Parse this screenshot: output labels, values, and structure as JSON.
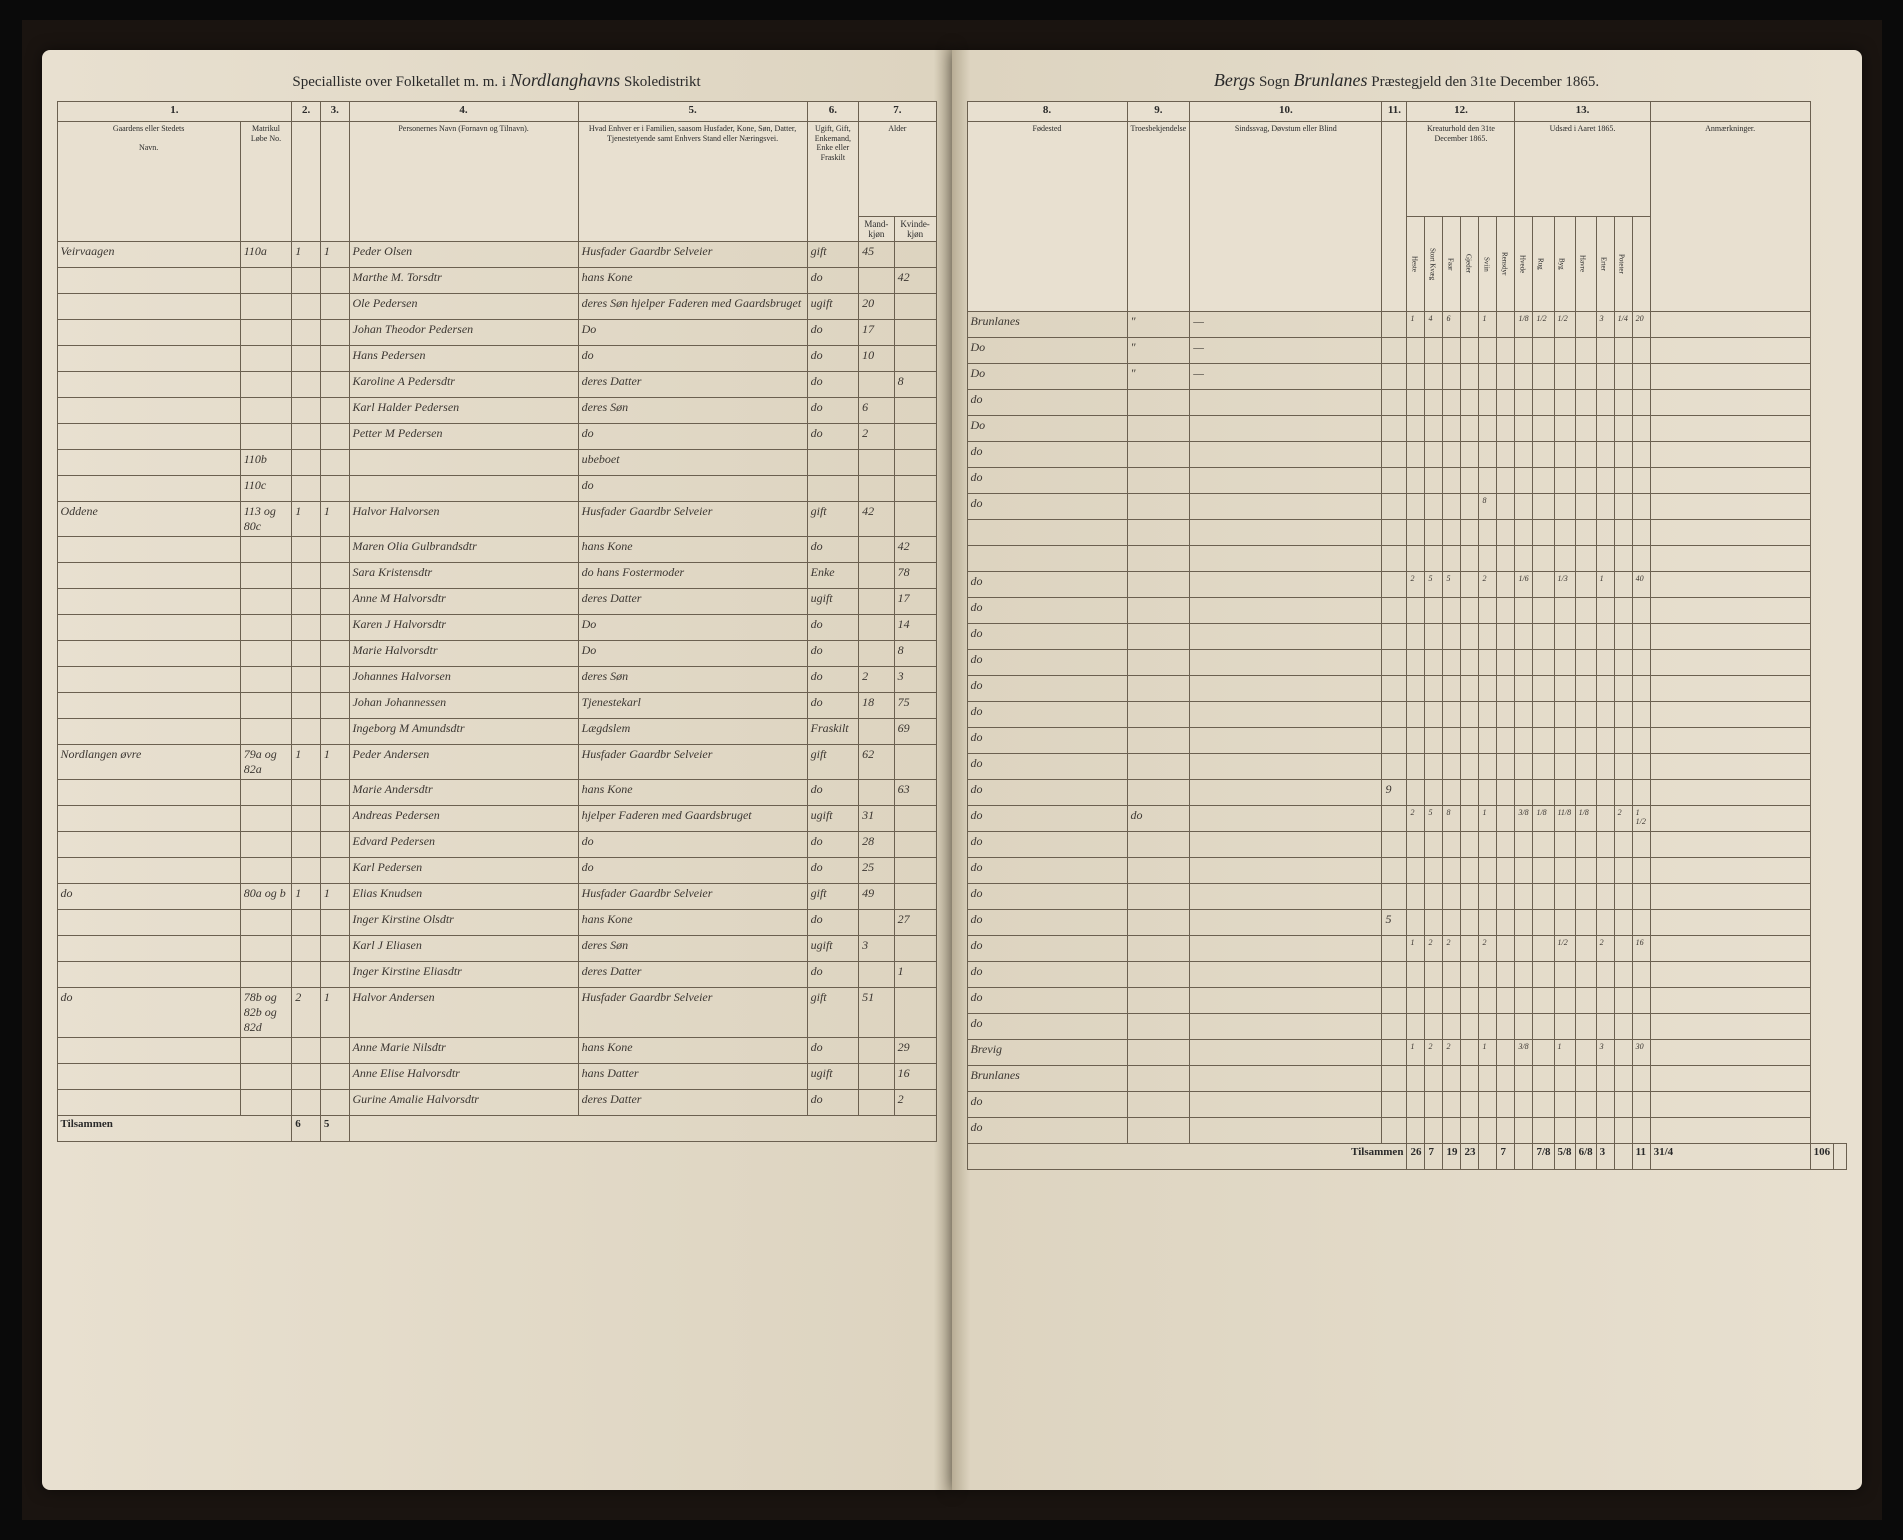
{
  "header": {
    "left_prefix": "Specialliste over Folketallet m. m. i",
    "left_district": "Nordlanghavns",
    "left_suffix": "Skoledistrikt",
    "right_parish": "Bergs",
    "right_sogn": "Sogn",
    "right_prestegjeld": "Brunlanes",
    "right_suffix": "Præstegjeld den 31te December 1865."
  },
  "left_cols": {
    "c1": "1.",
    "c2": "2.",
    "c3": "3.",
    "c4": "4.",
    "c5": "5.",
    "c6": "6.",
    "c7": "7.",
    "h1": "Gaardens eller Stedets",
    "h1b": "Navn.",
    "h1c": "Matrikul Løbe No.",
    "h4": "Personernes Navn (Fornavn og Tilnavn).",
    "h5": "Hvad Enhver er i Familien, saasom Husfader, Kone, Søn, Datter, Tjenestetyende samt Enhvers Stand eller Næringsvei.",
    "h6": "Ugift, Gift, Enkemand, Enke eller Fraskilt",
    "h7a": "Alder",
    "h7b": "Mand-kjøn",
    "h7c": "Kvinde-kjøn"
  },
  "right_cols": {
    "c8": "8.",
    "c9": "9.",
    "c10": "10.",
    "c11": "11.",
    "c12": "12.",
    "c13": "13.",
    "h8": "Fødested",
    "h9": "Troesbekjendelse",
    "h10": "Sindssvag, Døvstum eller Blind",
    "h12": "Kreaturhold den 31te December 1865.",
    "h13": "Udsæd i Aaret 1865.",
    "h_anm": "Anmærkninger."
  },
  "livestock_cols": [
    "Heste",
    "Stort Kvæg",
    "Faar",
    "Gjeder",
    "Sviin",
    "Rensdyr"
  ],
  "crop_cols": [
    "Hvede",
    "Rug",
    "Byg",
    "Havre",
    "Erter",
    "Poteter"
  ],
  "rows_left": [
    {
      "place": "Veirvaagen",
      "no": "110a",
      "h": "1",
      "p": "1",
      "name": "Peder Olsen",
      "role": "Husfader Gaardbr Selveier",
      "status": "gift",
      "m": "45",
      "k": ""
    },
    {
      "place": "",
      "no": "",
      "h": "",
      "p": "",
      "name": "Marthe M. Torsdtr",
      "role": "hans Kone",
      "status": "do",
      "m": "",
      "k": "42"
    },
    {
      "place": "",
      "no": "",
      "h": "",
      "p": "",
      "name": "Ole Pedersen",
      "role": "deres Søn hjelper Faderen med Gaardsbruget",
      "status": "ugift",
      "m": "20",
      "k": ""
    },
    {
      "place": "",
      "no": "",
      "h": "",
      "p": "",
      "name": "Johan Theodor Pedersen",
      "role": "Do",
      "status": "do",
      "m": "17",
      "k": ""
    },
    {
      "place": "",
      "no": "",
      "h": "",
      "p": "",
      "name": "Hans Pedersen",
      "role": "do",
      "status": "do",
      "m": "10",
      "k": ""
    },
    {
      "place": "",
      "no": "",
      "h": "",
      "p": "",
      "name": "Karoline A Pedersdtr",
      "role": "deres Datter",
      "status": "do",
      "m": "",
      "k": "8"
    },
    {
      "place": "",
      "no": "",
      "h": "",
      "p": "",
      "name": "Karl Halder Pedersen",
      "role": "deres Søn",
      "status": "do",
      "m": "6",
      "k": ""
    },
    {
      "place": "",
      "no": "",
      "h": "",
      "p": "",
      "name": "Petter M Pedersen",
      "role": "do",
      "status": "do",
      "m": "2",
      "k": ""
    },
    {
      "place": "",
      "no": "110b",
      "h": "",
      "p": "",
      "name": "",
      "role": "ubeboet",
      "status": "",
      "m": "",
      "k": ""
    },
    {
      "place": "",
      "no": "110c",
      "h": "",
      "p": "",
      "name": "",
      "role": "do",
      "status": "",
      "m": "",
      "k": ""
    },
    {
      "place": "Oddene",
      "no": "113 og 80c",
      "h": "1",
      "p": "1",
      "name": "Halvor Halvorsen",
      "role": "Husfader Gaardbr Selveier",
      "status": "gift",
      "m": "42",
      "k": ""
    },
    {
      "place": "",
      "no": "",
      "h": "",
      "p": "",
      "name": "Maren Olia Gulbrandsdtr",
      "role": "hans Kone",
      "status": "do",
      "m": "",
      "k": "42"
    },
    {
      "place": "",
      "no": "",
      "h": "",
      "p": "",
      "name": "Sara Kristensdtr",
      "role": "do hans Fostermoder",
      "status": "Enke",
      "m": "",
      "k": "78"
    },
    {
      "place": "",
      "no": "",
      "h": "",
      "p": "",
      "name": "Anne M Halvorsdtr",
      "role": "deres Datter",
      "status": "ugift",
      "m": "",
      "k": "17"
    },
    {
      "place": "",
      "no": "",
      "h": "",
      "p": "",
      "name": "Karen J Halvorsdtr",
      "role": "Do",
      "status": "do",
      "m": "",
      "k": "14"
    },
    {
      "place": "",
      "no": "",
      "h": "",
      "p": "",
      "name": "Marie Halvorsdtr",
      "role": "Do",
      "status": "do",
      "m": "",
      "k": "8"
    },
    {
      "place": "",
      "no": "",
      "h": "",
      "p": "",
      "name": "Johannes Halvorsen",
      "role": "deres Søn",
      "status": "do",
      "m": "2",
      "k": "3"
    },
    {
      "place": "",
      "no": "",
      "h": "",
      "p": "",
      "name": "Johan Johannessen",
      "role": "Tjenestekarl",
      "status": "do",
      "m": "18",
      "k": "75"
    },
    {
      "place": "",
      "no": "",
      "h": "",
      "p": "",
      "name": "Ingeborg M Amundsdtr",
      "role": "Lægdslem",
      "status": "Fraskilt",
      "m": "",
      "k": "69"
    },
    {
      "place": "Nordlangen øvre",
      "no": "79a og 82a",
      "h": "1",
      "p": "1",
      "name": "Peder Andersen",
      "role": "Husfader Gaardbr Selveier",
      "status": "gift",
      "m": "62",
      "k": ""
    },
    {
      "place": "",
      "no": "",
      "h": "",
      "p": "",
      "name": "Marie Andersdtr",
      "role": "hans Kone",
      "status": "do",
      "m": "",
      "k": "63"
    },
    {
      "place": "",
      "no": "",
      "h": "",
      "p": "",
      "name": "Andreas Pedersen",
      "role": "hjelper Faderen med Gaardsbruget",
      "status": "ugift",
      "m": "31",
      "k": ""
    },
    {
      "place": "",
      "no": "",
      "h": "",
      "p": "",
      "name": "Edvard Pedersen",
      "role": "do",
      "status": "do",
      "m": "28",
      "k": ""
    },
    {
      "place": "",
      "no": "",
      "h": "",
      "p": "",
      "name": "Karl Pedersen",
      "role": "do",
      "status": "do",
      "m": "25",
      "k": ""
    },
    {
      "place": "do",
      "no": "80a og b",
      "h": "1",
      "p": "1",
      "name": "Elias Knudsen",
      "role": "Husfader Gaardbr Selveier",
      "status": "gift",
      "m": "49",
      "k": ""
    },
    {
      "place": "",
      "no": "",
      "h": "",
      "p": "",
      "name": "Inger Kirstine Olsdtr",
      "role": "hans Kone",
      "status": "do",
      "m": "",
      "k": "27"
    },
    {
      "place": "",
      "no": "",
      "h": "",
      "p": "",
      "name": "Karl J Eliasen",
      "role": "deres Søn",
      "status": "ugift",
      "m": "3",
      "k": ""
    },
    {
      "place": "",
      "no": "",
      "h": "",
      "p": "",
      "name": "Inger Kirstine Eliasdtr",
      "role": "deres Datter",
      "status": "do",
      "m": "",
      "k": "1"
    },
    {
      "place": "do",
      "no": "78b og 82b og 82d",
      "h": "2",
      "p": "1",
      "name": "Halvor Andersen",
      "role": "Husfader Gaardbr Selveier",
      "status": "gift",
      "m": "51",
      "k": ""
    },
    {
      "place": "",
      "no": "",
      "h": "",
      "p": "",
      "name": "Anne Marie Nilsdtr",
      "role": "hans Kone",
      "status": "do",
      "m": "",
      "k": "29"
    },
    {
      "place": "",
      "no": "",
      "h": "",
      "p": "",
      "name": "Anne Elise Halvorsdtr",
      "role": "hans Datter",
      "status": "ugift",
      "m": "",
      "k": "16"
    },
    {
      "place": "",
      "no": "",
      "h": "",
      "p": "",
      "name": "Gurine Amalie Halvorsdtr",
      "role": "deres Datter",
      "status": "do",
      "m": "",
      "k": "2"
    }
  ],
  "rows_right": [
    {
      "born": "Brunlanes",
      "rel": "\"",
      "mad": "—",
      "insane": "",
      "ls": [
        "1",
        "4",
        "6",
        "",
        "1",
        ""
      ],
      "crop": [
        "1/8",
        "1/2",
        "1/2",
        "",
        "3",
        "1/4",
        "20"
      ]
    },
    {
      "born": "Do",
      "rel": "\"",
      "mad": "—",
      "insane": "",
      "ls": [
        "",
        "",
        "",
        "",
        "",
        ""
      ],
      "crop": [
        "",
        "",
        "",
        "",
        "",
        "",
        ""
      ]
    },
    {
      "born": "Do",
      "rel": "\"",
      "mad": "—",
      "insane": "",
      "ls": [
        "",
        "",
        "",
        "",
        "",
        ""
      ],
      "crop": [
        "",
        "",
        "",
        "",
        "",
        "",
        ""
      ]
    },
    {
      "born": "do",
      "rel": "",
      "mad": "",
      "insane": "",
      "ls": [
        "",
        "",
        "",
        "",
        "",
        ""
      ],
      "crop": [
        "",
        "",
        "",
        "",
        "",
        "",
        ""
      ]
    },
    {
      "born": "Do",
      "rel": "",
      "mad": "",
      "insane": "",
      "ls": [
        "",
        "",
        "",
        "",
        "",
        ""
      ],
      "crop": [
        "",
        "",
        "",
        "",
        "",
        "",
        ""
      ]
    },
    {
      "born": "do",
      "rel": "",
      "mad": "",
      "insane": "",
      "ls": [
        "",
        "",
        "",
        "",
        "",
        ""
      ],
      "crop": [
        "",
        "",
        "",
        "",
        "",
        "",
        ""
      ]
    },
    {
      "born": "do",
      "rel": "",
      "mad": "",
      "insane": "",
      "ls": [
        "",
        "",
        "",
        "",
        "",
        ""
      ],
      "crop": [
        "",
        "",
        "",
        "",
        "",
        "",
        ""
      ]
    },
    {
      "born": "do",
      "rel": "",
      "mad": "",
      "insane": "",
      "ls": [
        "",
        "",
        "",
        "",
        "8",
        ""
      ],
      "crop": [
        "",
        "",
        "",
        "",
        "",
        "",
        ""
      ]
    },
    {
      "born": "",
      "rel": "",
      "mad": "",
      "insane": "",
      "ls": [
        "",
        "",
        "",
        "",
        "",
        ""
      ],
      "crop": [
        "",
        "",
        "",
        "",
        "",
        "",
        ""
      ]
    },
    {
      "born": "",
      "rel": "",
      "mad": "",
      "insane": "",
      "ls": [
        "",
        "",
        "",
        "",
        "",
        ""
      ],
      "crop": [
        "",
        "",
        "",
        "",
        "",
        "",
        ""
      ]
    },
    {
      "born": "do",
      "rel": "",
      "mad": "",
      "insane": "",
      "ls": [
        "2",
        "5",
        "5",
        "",
        "2",
        ""
      ],
      "crop": [
        "1/6",
        "",
        "1/3",
        "",
        "1",
        "",
        "40"
      ]
    },
    {
      "born": "do",
      "rel": "",
      "mad": "",
      "insane": "",
      "ls": [
        "",
        "",
        "",
        "",
        "",
        ""
      ],
      "crop": [
        "",
        "",
        "",
        "",
        "",
        "",
        ""
      ]
    },
    {
      "born": "do",
      "rel": "",
      "mad": "",
      "insane": "",
      "ls": [
        "",
        "",
        "",
        "",
        "",
        ""
      ],
      "crop": [
        "",
        "",
        "",
        "",
        "",
        "",
        ""
      ]
    },
    {
      "born": "do",
      "rel": "",
      "mad": "",
      "insane": "",
      "ls": [
        "",
        "",
        "",
        "",
        "",
        ""
      ],
      "crop": [
        "",
        "",
        "",
        "",
        "",
        "",
        ""
      ]
    },
    {
      "born": "do",
      "rel": "",
      "mad": "",
      "insane": "",
      "ls": [
        "",
        "",
        "",
        "",
        "",
        ""
      ],
      "crop": [
        "",
        "",
        "",
        "",
        "",
        "",
        ""
      ]
    },
    {
      "born": "do",
      "rel": "",
      "mad": "",
      "insane": "",
      "ls": [
        "",
        "",
        "",
        "",
        "",
        ""
      ],
      "crop": [
        "",
        "",
        "",
        "",
        "",
        "",
        ""
      ]
    },
    {
      "born": "do",
      "rel": "",
      "mad": "",
      "insane": "",
      "ls": [
        "",
        "",
        "",
        "",
        "",
        ""
      ],
      "crop": [
        "",
        "",
        "",
        "",
        "",
        "",
        ""
      ]
    },
    {
      "born": "do",
      "rel": "",
      "mad": "",
      "insane": "",
      "ls": [
        "",
        "",
        "",
        "",
        "",
        ""
      ],
      "crop": [
        "",
        "",
        "",
        "",
        "",
        "",
        ""
      ]
    },
    {
      "born": "do",
      "rel": "",
      "mad": "",
      "insane": "9",
      "ls": [
        "",
        "",
        "",
        "",
        "",
        ""
      ],
      "crop": [
        "",
        "",
        "",
        "",
        "",
        "",
        ""
      ]
    },
    {
      "born": "do",
      "rel": "do",
      "mad": "",
      "insane": "",
      "ls": [
        "2",
        "5",
        "8",
        "",
        "1",
        ""
      ],
      "crop": [
        "3/8",
        "1/8",
        "11/8",
        "1/8",
        "",
        "2",
        "1 1/2",
        "20"
      ]
    },
    {
      "born": "do",
      "rel": "",
      "mad": "",
      "insane": "",
      "ls": [
        "",
        "",
        "",
        "",
        "",
        ""
      ],
      "crop": [
        "",
        "",
        "",
        "",
        "",
        "",
        ""
      ]
    },
    {
      "born": "do",
      "rel": "",
      "mad": "",
      "insane": "",
      "ls": [
        "",
        "",
        "",
        "",
        "",
        ""
      ],
      "crop": [
        "",
        "",
        "",
        "",
        "",
        "",
        ""
      ]
    },
    {
      "born": "do",
      "rel": "",
      "mad": "",
      "insane": "",
      "ls": [
        "",
        "",
        "",
        "",
        "",
        ""
      ],
      "crop": [
        "",
        "",
        "",
        "",
        "",
        "",
        ""
      ]
    },
    {
      "born": "do",
      "rel": "",
      "mad": "",
      "insane": "5",
      "ls": [
        "",
        "",
        "",
        "",
        "",
        ""
      ],
      "crop": [
        "",
        "",
        "",
        "",
        "",
        "",
        ""
      ]
    },
    {
      "born": "do",
      "rel": "",
      "mad": "",
      "insane": "",
      "ls": [
        "1",
        "2",
        "2",
        "",
        "2",
        ""
      ],
      "crop": [
        "",
        "",
        "1/2",
        "",
        "2",
        "",
        "16"
      ]
    },
    {
      "born": "do",
      "rel": "",
      "mad": "",
      "insane": "",
      "ls": [
        "",
        "",
        "",
        "",
        "",
        ""
      ],
      "crop": [
        "",
        "",
        "",
        "",
        "",
        "",
        ""
      ]
    },
    {
      "born": "do",
      "rel": "",
      "mad": "",
      "insane": "",
      "ls": [
        "",
        "",
        "",
        "",
        "",
        ""
      ],
      "crop": [
        "",
        "",
        "",
        "",
        "",
        "",
        ""
      ]
    },
    {
      "born": "do",
      "rel": "",
      "mad": "",
      "insane": "",
      "ls": [
        "",
        "",
        "",
        "",
        "",
        ""
      ],
      "crop": [
        "",
        "",
        "",
        "",
        "",
        "",
        ""
      ]
    },
    {
      "born": "Brevig",
      "rel": "",
      "mad": "",
      "insane": "",
      "ls": [
        "1",
        "2",
        "2",
        "",
        "1",
        ""
      ],
      "crop": [
        "3/8",
        "",
        "1",
        "",
        "3",
        "",
        "30"
      ]
    },
    {
      "born": "Brunlanes",
      "rel": "",
      "mad": "",
      "insane": "",
      "ls": [
        "",
        "",
        "",
        "",
        "",
        ""
      ],
      "crop": [
        "",
        "",
        "",
        "",
        "",
        "",
        ""
      ]
    },
    {
      "born": "do",
      "rel": "",
      "mad": "",
      "insane": "",
      "ls": [
        "",
        "",
        "",
        "",
        "",
        ""
      ],
      "crop": [
        "",
        "",
        "",
        "",
        "",
        "",
        ""
      ]
    },
    {
      "born": "do",
      "rel": "",
      "mad": "",
      "insane": "",
      "ls": [
        "",
        "",
        "",
        "",
        "",
        ""
      ],
      "crop": [
        "",
        "",
        "",
        "",
        "",
        "",
        ""
      ]
    }
  ],
  "footer": {
    "left_label": "Tilsammen",
    "left_h": "6",
    "left_p": "5",
    "right_label": "Tilsammen",
    "right_ls": [
      "26",
      "7",
      "19",
      "23",
      "",
      "7",
      ""
    ],
    "right_crop": [
      "7/8",
      "5/8",
      "6/8",
      "3",
      "",
      "11",
      "31/4",
      "106"
    ]
  },
  "colors": {
    "paper": "#e8e0d0",
    "ink": "#2a2a2a",
    "border": "#6b6050",
    "script": "#3a3530"
  }
}
